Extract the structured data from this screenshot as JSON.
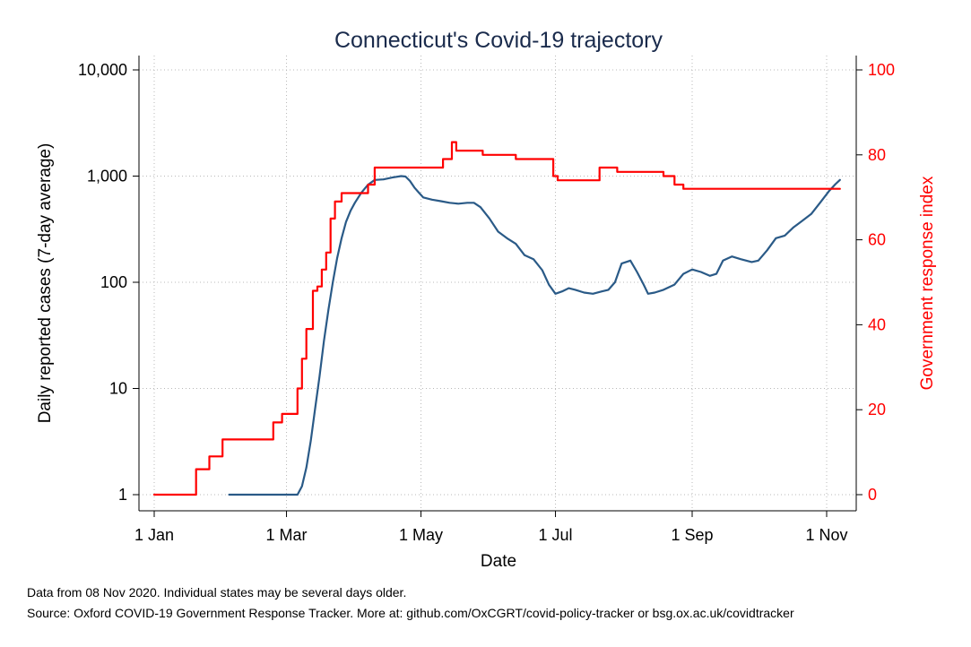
{
  "chart_data": {
    "type": "line",
    "title": "Connecticut's Covid-19 trajectory",
    "xlabel": "Date",
    "ylabel_left": "Daily reported cases (7-day average)",
    "ylabel_right": "Government response index",
    "x_ticks": [
      "1 Jan",
      "1 Mar",
      "1 May",
      "1 Jul",
      "1 Sep",
      "1 Nov"
    ],
    "x_tick_days": [
      0,
      60,
      121,
      182,
      244,
      305
    ],
    "y_left_ticks": [
      "1",
      "10",
      "100",
      "1,000",
      "10,000"
    ],
    "y_left_values": [
      1,
      10,
      100,
      1000,
      10000
    ],
    "y_left_scale": "log",
    "y_right_ticks": [
      "0",
      "20",
      "40",
      "60",
      "80",
      "100"
    ],
    "y_right_values": [
      0,
      20,
      40,
      60,
      80,
      100
    ],
    "x_range": [
      "2020-01-01",
      "2020-11-07"
    ],
    "ylim_left": [
      1,
      10000
    ],
    "ylim_right": [
      0,
      100
    ],
    "grid": true,
    "series": [
      {
        "axis": "left",
        "color": "#2a5a87",
        "points": [
          [
            "2020-02-04",
            1
          ],
          [
            "2020-03-06",
            1
          ],
          [
            "2020-03-08",
            1.2
          ],
          [
            "2020-03-10",
            1.8
          ],
          [
            "2020-03-12",
            3.2
          ],
          [
            "2020-03-14",
            6.5
          ],
          [
            "2020-03-16",
            13
          ],
          [
            "2020-03-18",
            28
          ],
          [
            "2020-03-20",
            55
          ],
          [
            "2020-03-22",
            100
          ],
          [
            "2020-03-24",
            170
          ],
          [
            "2020-03-26",
            260
          ],
          [
            "2020-03-28",
            370
          ],
          [
            "2020-03-30",
            470
          ],
          [
            "2020-04-01",
            560
          ],
          [
            "2020-04-04",
            700
          ],
          [
            "2020-04-07",
            830
          ],
          [
            "2020-04-10",
            920
          ],
          [
            "2020-04-14",
            930
          ],
          [
            "2020-04-18",
            970
          ],
          [
            "2020-04-22",
            1000
          ],
          [
            "2020-04-24",
            990
          ],
          [
            "2020-04-26",
            900
          ],
          [
            "2020-04-28",
            780
          ],
          [
            "2020-04-30",
            700
          ],
          [
            "2020-05-02",
            630
          ],
          [
            "2020-05-06",
            600
          ],
          [
            "2020-05-10",
            580
          ],
          [
            "2020-05-14",
            560
          ],
          [
            "2020-05-18",
            550
          ],
          [
            "2020-05-22",
            560
          ],
          [
            "2020-05-25",
            560
          ],
          [
            "2020-05-28",
            510
          ],
          [
            "2020-06-01",
            400
          ],
          [
            "2020-06-05",
            300
          ],
          [
            "2020-06-09",
            260
          ],
          [
            "2020-06-13",
            230
          ],
          [
            "2020-06-17",
            180
          ],
          [
            "2020-06-21",
            165
          ],
          [
            "2020-06-25",
            130
          ],
          [
            "2020-06-28",
            95
          ],
          [
            "2020-07-01",
            78
          ],
          [
            "2020-07-04",
            82
          ],
          [
            "2020-07-07",
            88
          ],
          [
            "2020-07-10",
            85
          ],
          [
            "2020-07-14",
            80
          ],
          [
            "2020-07-18",
            78
          ],
          [
            "2020-07-22",
            82
          ],
          [
            "2020-07-25",
            85
          ],
          [
            "2020-07-28",
            100
          ],
          [
            "2020-07-31",
            150
          ],
          [
            "2020-08-04",
            160
          ],
          [
            "2020-08-07",
            125
          ],
          [
            "2020-08-10",
            95
          ],
          [
            "2020-08-12",
            78
          ],
          [
            "2020-08-15",
            80
          ],
          [
            "2020-08-19",
            85
          ],
          [
            "2020-08-24",
            95
          ],
          [
            "2020-08-28",
            120
          ],
          [
            "2020-09-01",
            132
          ],
          [
            "2020-09-05",
            125
          ],
          [
            "2020-09-09",
            115
          ],
          [
            "2020-09-12",
            120
          ],
          [
            "2020-09-15",
            160
          ],
          [
            "2020-09-19",
            175
          ],
          [
            "2020-09-23",
            165
          ],
          [
            "2020-09-28",
            155
          ],
          [
            "2020-10-01",
            160
          ],
          [
            "2020-10-05",
            200
          ],
          [
            "2020-10-09",
            260
          ],
          [
            "2020-10-13",
            275
          ],
          [
            "2020-10-17",
            330
          ],
          [
            "2020-10-21",
            380
          ],
          [
            "2020-10-25",
            440
          ],
          [
            "2020-10-29",
            560
          ],
          [
            "2020-11-02",
            720
          ],
          [
            "2020-11-05",
            840
          ],
          [
            "2020-11-07",
            920
          ]
        ]
      },
      {
        "axis": "right",
        "color": "#ff0000",
        "step": true,
        "points": [
          [
            "2020-01-01",
            0
          ],
          [
            "2020-01-20",
            6
          ],
          [
            "2020-01-26",
            9
          ],
          [
            "2020-02-01",
            13
          ],
          [
            "2020-02-24",
            17
          ],
          [
            "2020-02-28",
            19
          ],
          [
            "2020-03-06",
            25
          ],
          [
            "2020-03-08",
            32
          ],
          [
            "2020-03-10",
            39
          ],
          [
            "2020-03-13",
            48
          ],
          [
            "2020-03-15",
            49
          ],
          [
            "2020-03-17",
            53
          ],
          [
            "2020-03-19",
            57
          ],
          [
            "2020-03-21",
            65
          ],
          [
            "2020-03-23",
            69
          ],
          [
            "2020-03-26",
            71
          ],
          [
            "2020-04-07",
            73
          ],
          [
            "2020-04-10",
            77
          ],
          [
            "2020-05-11",
            79
          ],
          [
            "2020-05-15",
            83
          ],
          [
            "2020-05-17",
            81
          ],
          [
            "2020-05-29",
            80
          ],
          [
            "2020-06-13",
            79
          ],
          [
            "2020-06-30",
            75
          ],
          [
            "2020-07-02",
            74
          ],
          [
            "2020-07-21",
            77
          ],
          [
            "2020-07-29",
            76
          ],
          [
            "2020-08-19",
            75
          ],
          [
            "2020-08-24",
            73
          ],
          [
            "2020-08-28",
            72
          ],
          [
            "2020-11-07",
            72
          ]
        ]
      }
    ]
  },
  "notes": {
    "line1": "Data from 08 Nov 2020. Individual states may be several days older.",
    "line2": "Source: Oxford COVID-19 Government Response Tracker. More at: github.com/OxCGRT/covid-policy-tracker or bsg.ox.ac.uk/covidtracker"
  }
}
